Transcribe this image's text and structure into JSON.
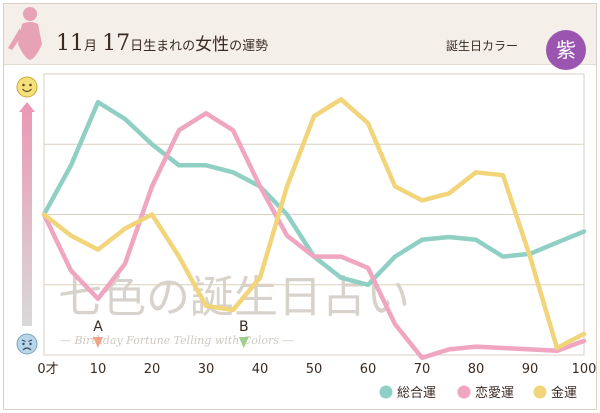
{
  "header": {
    "month": "11",
    "month_unit": "月",
    "day": "17",
    "day_unit": "日生まれの",
    "gender": "女性",
    "suffix": "の運勢",
    "birth_color_label": "誕生日カラー",
    "birth_color_value": "紫",
    "birth_color_hex": "#9b55b0"
  },
  "watermark": {
    "jp": "七色の誕生日占い",
    "en": "— Birthday Fortune Telling with Colors —"
  },
  "markers": [
    {
      "label": "A",
      "x": 10,
      "color": "#f0a58a"
    },
    {
      "label": "B",
      "x": 37,
      "color": "#9ed08a"
    }
  ],
  "chart_data": {
    "type": "line",
    "title": "",
    "xlabel": "",
    "ylabel": "",
    "xlim": [
      0,
      100
    ],
    "ylim": [
      -1,
      1
    ],
    "x_ticks": [
      0,
      10,
      20,
      30,
      40,
      50,
      60,
      70,
      80,
      90,
      100
    ],
    "x_tick_labels": [
      "0才",
      "10",
      "20",
      "30",
      "40",
      "50",
      "60",
      "70",
      "80",
      "90",
      "100"
    ],
    "grid": true,
    "legend_position": "bottom-right",
    "y_axis_icons": {
      "top": "smile-face",
      "bottom": "worried-face"
    },
    "series": [
      {
        "name": "総合運",
        "color": "#90d0c4",
        "x": [
          0,
          5,
          10,
          15,
          20,
          25,
          30,
          35,
          40,
          45,
          50,
          55,
          60,
          65,
          70,
          75,
          80,
          85,
          90,
          95,
          100
        ],
        "values": [
          0.0,
          0.35,
          0.8,
          0.68,
          0.5,
          0.35,
          0.35,
          0.3,
          0.2,
          0.0,
          -0.3,
          -0.45,
          -0.5,
          -0.3,
          -0.18,
          -0.16,
          -0.18,
          -0.3,
          -0.28,
          -0.2,
          -0.12
        ]
      },
      {
        "name": "恋愛運",
        "color": "#f0a5c0",
        "x": [
          0,
          5,
          10,
          15,
          20,
          25,
          30,
          35,
          40,
          45,
          50,
          55,
          60,
          65,
          70,
          75,
          80,
          85,
          90,
          95,
          100
        ],
        "values": [
          0.0,
          -0.4,
          -0.6,
          -0.35,
          0.2,
          0.6,
          0.72,
          0.6,
          0.2,
          -0.15,
          -0.3,
          -0.3,
          -0.38,
          -0.78,
          -1.02,
          -0.96,
          -0.94,
          -0.95,
          -0.96,
          -0.97,
          -0.9
        ]
      },
      {
        "name": "金運",
        "color": "#f2d47a",
        "x": [
          0,
          5,
          10,
          15,
          20,
          25,
          30,
          35,
          40,
          45,
          50,
          55,
          60,
          65,
          70,
          75,
          80,
          85,
          90,
          95,
          100
        ],
        "values": [
          0.0,
          -0.15,
          -0.25,
          -0.1,
          0.0,
          -0.3,
          -0.65,
          -0.68,
          -0.45,
          0.2,
          0.7,
          0.82,
          0.65,
          0.2,
          0.1,
          0.15,
          0.3,
          0.28,
          -0.3,
          -0.95,
          -0.85
        ]
      }
    ]
  }
}
